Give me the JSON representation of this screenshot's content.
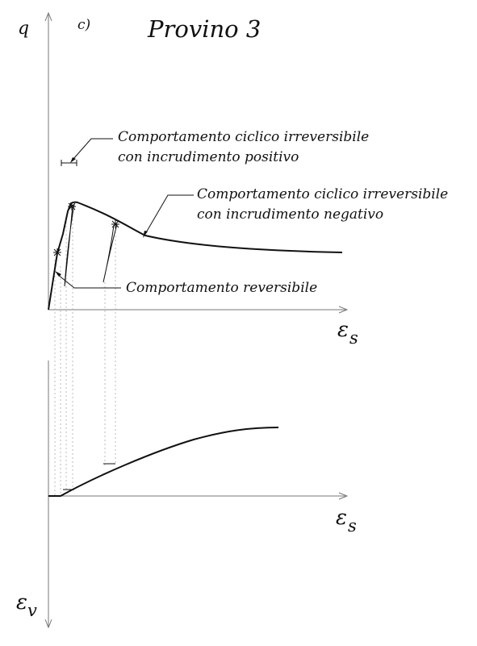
{
  "panel_label": "c)",
  "title": "Provino 3",
  "axes": {
    "q": "q",
    "eps": "ε",
    "s": "s",
    "v": "v"
  },
  "annotations": {
    "irreversible_positive": [
      "Comportamento ciclico irreversibile",
      "con incrudimento positivo"
    ],
    "irreversible_negative": [
      "Comportamento ciclico irreversibile",
      "con incrudimento negativo"
    ],
    "reversible": "Comportamento reversibile"
  },
  "colors": {
    "curve": "#111111",
    "axis": "#777777",
    "guide": "#bbbbbb"
  }
}
